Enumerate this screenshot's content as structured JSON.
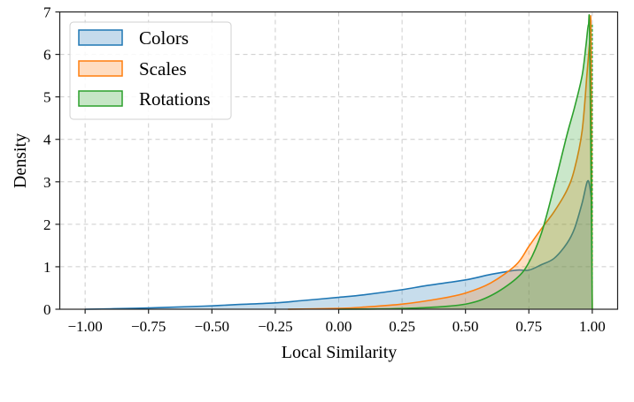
{
  "chart_data": {
    "type": "area",
    "subtype": "kde",
    "title": "",
    "xlabel": "Local Similarity",
    "ylabel": "Density",
    "xlim": [
      -1.1,
      1.1
    ],
    "ylim": [
      0,
      7
    ],
    "xticks": [
      -1.0,
      -0.75,
      -0.5,
      -0.25,
      0.0,
      0.25,
      0.5,
      0.75,
      1.0
    ],
    "xtick_labels": [
      "−1.00",
      "−0.75",
      "−0.50",
      "−0.25",
      "0.00",
      "0.25",
      "0.50",
      "0.75",
      "1.00"
    ],
    "yticks": [
      0,
      1,
      2,
      3,
      4,
      5,
      6,
      7
    ],
    "ytick_labels": [
      "0",
      "1",
      "2",
      "3",
      "4",
      "5",
      "6",
      "7"
    ],
    "grid": true,
    "legend_position": "upper left",
    "series": [
      {
        "name": "Colors",
        "color": "#1f77b4",
        "x": [
          -1.0,
          -0.9,
          -0.75,
          -0.6,
          -0.5,
          -0.4,
          -0.25,
          -0.15,
          0.0,
          0.1,
          0.25,
          0.35,
          0.5,
          0.6,
          0.7,
          0.75,
          0.8,
          0.85,
          0.9,
          0.93,
          0.96,
          0.98,
          0.99,
          1.0
        ],
        "y": [
          0.0,
          0.01,
          0.03,
          0.06,
          0.08,
          0.11,
          0.15,
          0.2,
          0.28,
          0.34,
          0.46,
          0.56,
          0.69,
          0.82,
          0.92,
          0.92,
          1.05,
          1.2,
          1.55,
          1.9,
          2.5,
          3.0,
          2.9,
          2.4
        ]
      },
      {
        "name": "Scales",
        "color": "#ff7f0e",
        "x": [
          -0.2,
          0.0,
          0.1,
          0.25,
          0.4,
          0.5,
          0.6,
          0.7,
          0.75,
          0.8,
          0.85,
          0.9,
          0.93,
          0.96,
          0.98,
          0.99,
          0.995,
          1.0
        ],
        "y": [
          0.0,
          0.02,
          0.05,
          0.12,
          0.25,
          0.38,
          0.62,
          1.05,
          1.48,
          1.9,
          2.3,
          2.8,
          3.3,
          4.2,
          5.6,
          6.3,
          6.45,
          0.0
        ]
      },
      {
        "name": "Rotations",
        "color": "#2ca02c",
        "x": [
          0.0,
          0.2,
          0.35,
          0.5,
          0.6,
          0.7,
          0.75,
          0.8,
          0.85,
          0.9,
          0.93,
          0.96,
          0.975,
          0.985,
          0.99,
          1.0
        ],
        "y": [
          0.0,
          0.01,
          0.04,
          0.12,
          0.32,
          0.72,
          1.1,
          1.8,
          2.9,
          4.1,
          4.75,
          5.5,
          6.2,
          6.7,
          6.3,
          0.0
        ]
      }
    ]
  },
  "legend": {
    "items": [
      {
        "label": "Colors",
        "edge": "#1f77b4",
        "fill": "#c5dbec"
      },
      {
        "label": "Scales",
        "edge": "#ff7f0e",
        "fill": "#ffddc1"
      },
      {
        "label": "Rotations",
        "edge": "#2ca02c",
        "fill": "#c6e6c6"
      }
    ]
  }
}
